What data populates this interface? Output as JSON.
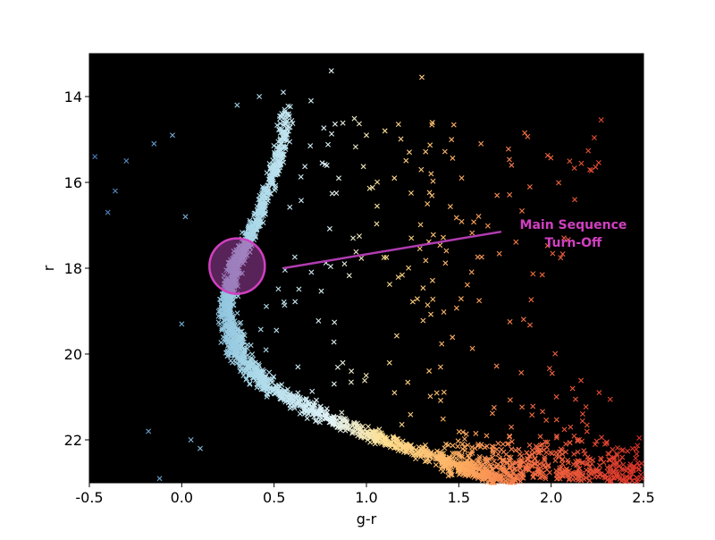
{
  "chart_data": {
    "type": "scatter",
    "title": "",
    "xlabel": "g-r",
    "ylabel": "r",
    "xlim": [
      -0.5,
      2.5
    ],
    "ylim": [
      23.0,
      13.0
    ],
    "y_inverted": true,
    "background": "#000000",
    "grid": false,
    "marker": "x",
    "colormap": "Spectral_r (blue → white → yellow → orange → red with increasing g-r)",
    "xticks": [
      "-0.5",
      "0.0",
      "0.5",
      "1.0",
      "1.5",
      "2.0",
      "2.5"
    ],
    "xtick_values": [
      -0.5,
      0.0,
      0.5,
      1.0,
      1.5,
      2.0,
      2.5
    ],
    "yticks": [
      "14",
      "16",
      "18",
      "20",
      "22"
    ],
    "ytick_values": [
      14,
      16,
      18,
      20,
      22
    ],
    "anchor_points": [
      {
        "x": -0.47,
        "y": 15.4
      },
      {
        "x": -0.3,
        "y": 15.5
      },
      {
        "x": -0.36,
        "y": 16.2
      },
      {
        "x": -0.4,
        "y": 16.7
      },
      {
        "x": -0.15,
        "y": 15.1
      },
      {
        "x": -0.05,
        "y": 14.9
      },
      {
        "x": 0.3,
        "y": 14.2
      },
      {
        "x": 0.42,
        "y": 14.0
      },
      {
        "x": 0.55,
        "y": 13.9
      },
      {
        "x": 0.7,
        "y": 14.1
      },
      {
        "x": 0.81,
        "y": 13.4
      },
      {
        "x": 1.3,
        "y": 13.55
      },
      {
        "x": 1.0,
        "y": 14.9
      },
      {
        "x": 1.1,
        "y": 14.8
      },
      {
        "x": 1.62,
        "y": 15.1
      },
      {
        "x": 0.85,
        "y": 15.9
      },
      {
        "x": 1.35,
        "y": 15.8
      },
      {
        "x": 1.33,
        "y": 16.5
      },
      {
        "x": 0.02,
        "y": 16.8
      },
      {
        "x": 0.0,
        "y": 19.3
      },
      {
        "x": -0.18,
        "y": 21.8
      },
      {
        "x": -0.12,
        "y": 22.9
      },
      {
        "x": 0.05,
        "y": 22.0
      },
      {
        "x": 0.1,
        "y": 22.2
      }
    ],
    "sequence_model": {
      "main_sequence_locus": [
        {
          "y": 14.2,
          "x": 0.58
        },
        {
          "y": 15.5,
          "x": 0.52
        },
        {
          "y": 16.5,
          "x": 0.44
        },
        {
          "y": 17.5,
          "x": 0.34
        },
        {
          "y": 18.0,
          "x": 0.28
        },
        {
          "y": 19.0,
          "x": 0.24
        },
        {
          "y": 20.0,
          "x": 0.3
        },
        {
          "y": 20.8,
          "x": 0.48
        },
        {
          "y": 21.5,
          "x": 0.8
        },
        {
          "y": 22.0,
          "x": 1.1
        },
        {
          "y": 22.5,
          "x": 1.45
        },
        {
          "y": 23.0,
          "x": 1.75
        }
      ],
      "red_dwarf_tail_range": {
        "x": [
          1.4,
          2.5
        ],
        "y": [
          21.0,
          23.0
        ]
      }
    },
    "annotations": [
      {
        "type": "circle",
        "center": {
          "x": 0.3,
          "y": 17.95
        },
        "radius_x_units": 0.15,
        "fill": "#a040a0",
        "fill_opacity": 0.55,
        "edge": "#d040c0"
      },
      {
        "type": "arrow-line",
        "from": {
          "x": 1.73,
          "y": 17.15
        },
        "to": {
          "x": 0.55,
          "y": 18.0
        },
        "color": "#b03cb0"
      },
      {
        "type": "text",
        "lines": [
          "Main Sequence",
          "Turn-Off"
        ],
        "at": {
          "x": 2.12,
          "y": 17.25
        },
        "color": "#d040c0"
      }
    ]
  }
}
